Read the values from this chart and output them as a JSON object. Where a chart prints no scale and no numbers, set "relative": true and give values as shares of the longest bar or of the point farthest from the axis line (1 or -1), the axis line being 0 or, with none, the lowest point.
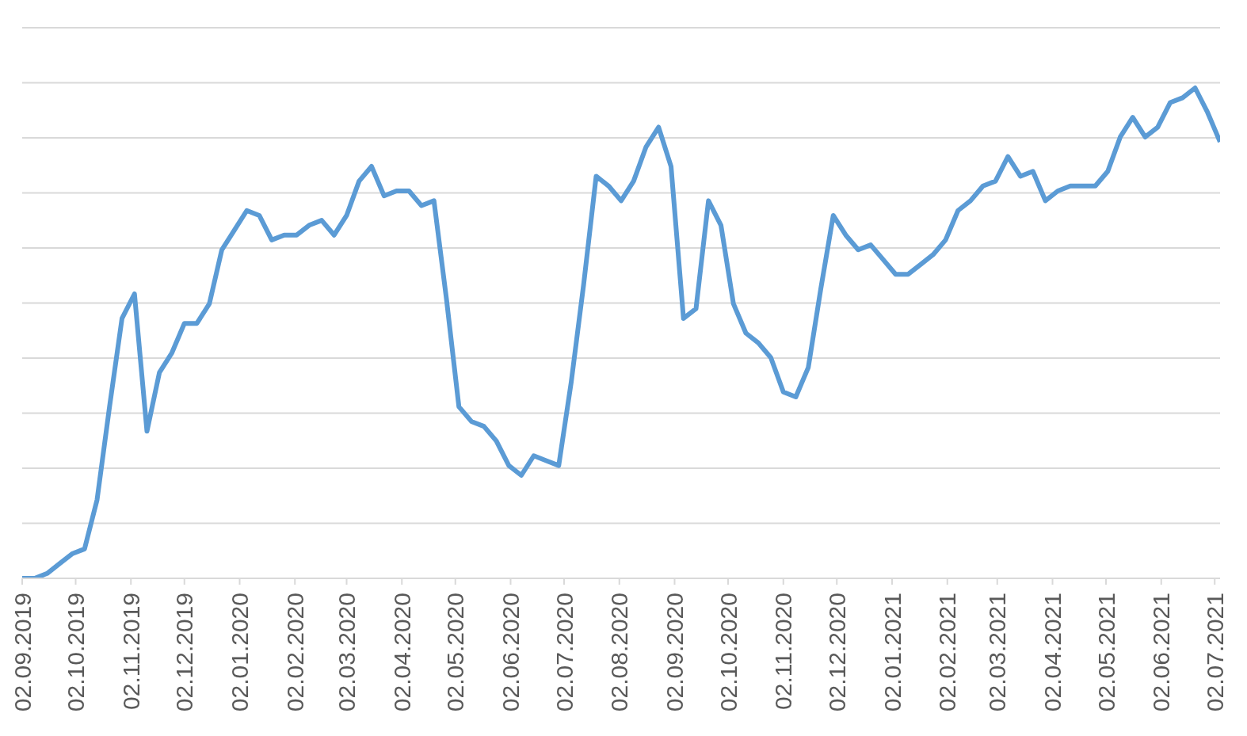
{
  "chart_data": {
    "type": "line",
    "relative": true,
    "grid": "y",
    "x": [
      "2019-09-02",
      "2019-09-09",
      "2019-09-16",
      "2019-09-23",
      "2019-09-30",
      "2019-10-07",
      "2019-10-14",
      "2019-10-21",
      "2019-10-28",
      "2019-11-04",
      "2019-11-11",
      "2019-11-18",
      "2019-11-25",
      "2019-12-02",
      "2019-12-09",
      "2019-12-16",
      "2019-12-23",
      "2019-12-30",
      "2020-01-06",
      "2020-01-13",
      "2020-01-20",
      "2020-01-27",
      "2020-02-03",
      "2020-02-10",
      "2020-02-17",
      "2020-02-24",
      "2020-03-02",
      "2020-03-09",
      "2020-03-16",
      "2020-03-23",
      "2020-03-30",
      "2020-04-06",
      "2020-04-13",
      "2020-04-20",
      "2020-04-27",
      "2020-05-04",
      "2020-05-11",
      "2020-05-18",
      "2020-05-25",
      "2020-06-01",
      "2020-06-08",
      "2020-06-15",
      "2020-06-22",
      "2020-06-29",
      "2020-07-06",
      "2020-07-13",
      "2020-07-20",
      "2020-07-27",
      "2020-08-03",
      "2020-08-10",
      "2020-08-17",
      "2020-08-24",
      "2020-08-31",
      "2020-09-07",
      "2020-09-14",
      "2020-09-21",
      "2020-09-28",
      "2020-10-05",
      "2020-10-12",
      "2020-10-19",
      "2020-10-26",
      "2020-11-02",
      "2020-11-09",
      "2020-11-16",
      "2020-11-23",
      "2020-11-30",
      "2020-12-07",
      "2020-12-14",
      "2020-12-21",
      "2020-12-28",
      "2021-01-04",
      "2021-01-11",
      "2021-01-18",
      "2021-01-25",
      "2021-02-01",
      "2021-02-08",
      "2021-02-15",
      "2021-02-22",
      "2021-03-01",
      "2021-03-08",
      "2021-03-15",
      "2021-03-22",
      "2021-03-29",
      "2021-04-05",
      "2021-04-12",
      "2021-04-19",
      "2021-04-26",
      "2021-05-03",
      "2021-05-10",
      "2021-05-17",
      "2021-05-24",
      "2021-05-31",
      "2021-06-07",
      "2021-06-14",
      "2021-06-21",
      "2021-06-28",
      "2021-07-05"
    ],
    "xlim": [
      "2019-09-02",
      "2021-07-05"
    ],
    "xticks": [
      {
        "value": "2019-09-02",
        "label": "02.09.2019"
      },
      {
        "value": "2019-10-02",
        "label": "02.10.2019"
      },
      {
        "value": "2019-11-02",
        "label": "02.11.2019"
      },
      {
        "value": "2019-12-02",
        "label": "02.12.2019"
      },
      {
        "value": "2020-01-02",
        "label": "02.01.2020"
      },
      {
        "value": "2020-02-02",
        "label": "02.02.2020"
      },
      {
        "value": "2020-03-02",
        "label": "02.03.2020"
      },
      {
        "value": "2020-04-02",
        "label": "02.04.2020"
      },
      {
        "value": "2020-05-02",
        "label": "02.05.2020"
      },
      {
        "value": "2020-06-02",
        "label": "02.06.2020"
      },
      {
        "value": "2020-07-02",
        "label": "02.07.2020"
      },
      {
        "value": "2020-08-02",
        "label": "02.08.2020"
      },
      {
        "value": "2020-09-02",
        "label": "02.09.2020"
      },
      {
        "value": "2020-10-02",
        "label": "02.10.2020"
      },
      {
        "value": "2020-11-02",
        "label": "02.11.2020"
      },
      {
        "value": "2020-12-02",
        "label": "02.12.2020"
      },
      {
        "value": "2021-01-02",
        "label": "02.01.2021"
      },
      {
        "value": "2021-02-02",
        "label": "02.02.2021"
      },
      {
        "value": "2021-03-02",
        "label": "02.03.2021"
      },
      {
        "value": "2021-04-02",
        "label": "02.04.2021"
      },
      {
        "value": "2021-05-02",
        "label": "02.05.2021"
      },
      {
        "value": "2021-06-02",
        "label": "02.06.2021"
      },
      {
        "value": "2021-07-02",
        "label": "02.07.2021"
      }
    ],
    "series": [
      {
        "color": "#5b9bd5",
        "values": [
          0,
          0,
          0.01,
          0.03,
          0.05,
          0.06,
          0.16,
          0.35,
          0.53,
          0.58,
          0.3,
          0.42,
          0.46,
          0.52,
          0.52,
          0.56,
          0.67,
          0.71,
          0.75,
          0.74,
          0.69,
          0.7,
          0.7,
          0.72,
          0.73,
          0.7,
          0.74,
          0.81,
          0.84,
          0.78,
          0.79,
          0.79,
          0.76,
          0.77,
          0.57,
          0.35,
          0.32,
          0.31,
          0.28,
          0.23,
          0.21,
          0.25,
          0.24,
          0.23,
          0.4,
          0.6,
          0.82,
          0.8,
          0.77,
          0.81,
          0.88,
          0.92,
          0.84,
          0.53,
          0.55,
          0.77,
          0.72,
          0.56,
          0.5,
          0.48,
          0.45,
          0.38,
          0.37,
          0.43,
          0.59,
          0.74,
          0.7,
          0.67,
          0.68,
          0.65,
          0.62,
          0.62,
          0.64,
          0.66,
          0.69,
          0.75,
          0.77,
          0.8,
          0.81,
          0.86,
          0.82,
          0.83,
          0.77,
          0.79,
          0.8,
          0.8,
          0.8,
          0.83,
          0.9,
          0.94,
          0.9,
          0.92,
          0.97,
          0.98,
          1,
          0.95,
          0.89
        ]
      }
    ]
  }
}
